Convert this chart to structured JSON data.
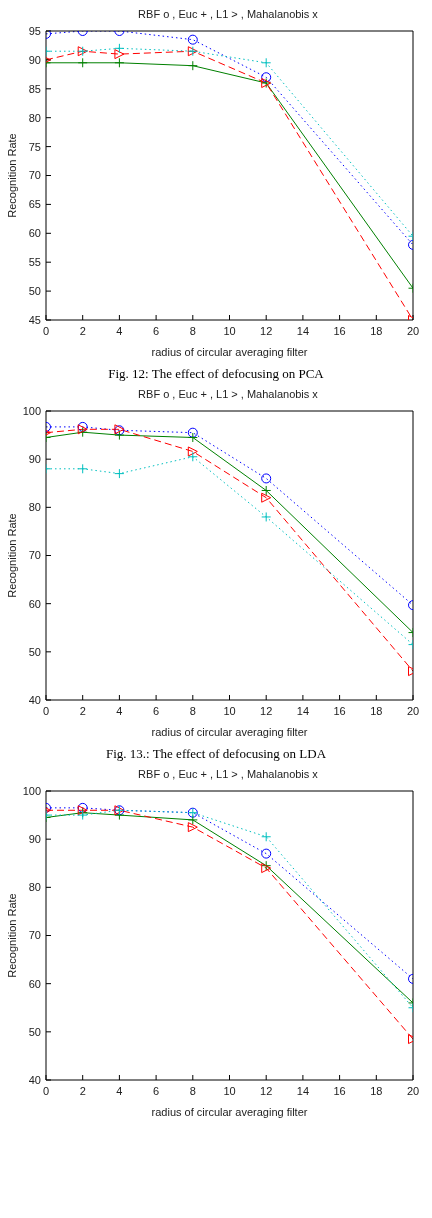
{
  "chart_data": [
    {
      "type": "line",
      "title": "RBF o , Euc + , L1 > , Mahalanobis x",
      "xlabel": "radius of circular averaging filter",
      "ylabel": "Recognition Rate",
      "annotations": [
        "Fig. 12: The effect of defocusing on PCA"
      ],
      "x": [
        0,
        2,
        4,
        8,
        12,
        20
      ],
      "xlim": [
        0,
        20
      ],
      "xticks": [
        0,
        2,
        4,
        6,
        8,
        10,
        12,
        14,
        16,
        18,
        20
      ],
      "ylim": [
        45,
        95
      ],
      "yticks": [
        45,
        50,
        55,
        60,
        65,
        70,
        75,
        80,
        85,
        90,
        95
      ],
      "series": [
        {
          "color": "#0000ff",
          "marker": "circle",
          "line_style": "dotted",
          "values": [
            94.5,
            95,
            95,
            93.5,
            87,
            58
          ]
        },
        {
          "color": "#008000",
          "marker": "cross",
          "line_style": "solid",
          "values": [
            89.5,
            89.5,
            89.5,
            89,
            86,
            50.5
          ]
        },
        {
          "color": "#ff0000",
          "marker": "triangle",
          "line_style": "dashed",
          "values": [
            90,
            91.5,
            91,
            91.5,
            86,
            45
          ]
        },
        {
          "color": "#00bfbf",
          "marker": "cross",
          "line_style": "dotted",
          "values": [
            91.5,
            91.5,
            92,
            91.5,
            89.5,
            59.5
          ]
        }
      ]
    },
    {
      "type": "line",
      "title": "RBF o , Euc + , L1 > , Mahalanobis x",
      "xlabel": "radius of circular averaging filter",
      "ylabel": "Recognition Rate",
      "annotations": [
        "Fig. 13.: The effect of defocusing on LDA"
      ],
      "x": [
        0,
        2,
        4,
        8,
        12,
        20
      ],
      "xlim": [
        0,
        20
      ],
      "xticks": [
        0,
        2,
        4,
        6,
        8,
        10,
        12,
        14,
        16,
        18,
        20
      ],
      "ylim": [
        40,
        100
      ],
      "yticks": [
        40,
        50,
        60,
        70,
        80,
        90,
        100
      ],
      "series": [
        {
          "color": "#0000ff",
          "marker": "circle",
          "line_style": "dotted",
          "values": [
            96.7,
            96.7,
            96,
            95.5,
            86,
            59.7
          ]
        },
        {
          "color": "#008000",
          "marker": "cross",
          "line_style": "solid",
          "values": [
            94.5,
            95.6,
            95,
            94.5,
            83.5,
            54
          ]
        },
        {
          "color": "#ff0000",
          "marker": "triangle",
          "line_style": "dashed",
          "values": [
            95.5,
            96.2,
            96.2,
            91.6,
            82,
            46
          ]
        },
        {
          "color": "#00bfbf",
          "marker": "cross",
          "line_style": "dotted",
          "values": [
            88,
            88,
            87,
            90.5,
            78,
            51.5
          ]
        }
      ]
    },
    {
      "type": "line",
      "title": "RBF o , Euc + , L1 > , Mahalanobis x",
      "xlabel": "radius of circular averaging filter",
      "ylabel": "Recognition Rate",
      "x": [
        0,
        2,
        4,
        8,
        12,
        20
      ],
      "xlim": [
        0,
        20
      ],
      "xticks": [
        0,
        2,
        4,
        6,
        8,
        10,
        12,
        14,
        16,
        18,
        20
      ],
      "ylim": [
        40,
        100
      ],
      "yticks": [
        40,
        50,
        60,
        70,
        80,
        90,
        100
      ],
      "series": [
        {
          "color": "#0000ff",
          "marker": "circle",
          "line_style": "dotted",
          "values": [
            96.5,
            96.5,
            96,
            95.5,
            87,
            61
          ]
        },
        {
          "color": "#008000",
          "marker": "cross",
          "line_style": "solid",
          "values": [
            94.5,
            95.5,
            95,
            94,
            84.5,
            56
          ]
        },
        {
          "color": "#ff0000",
          "marker": "triangle",
          "line_style": "dashed",
          "values": [
            96,
            96,
            96,
            92.5,
            84,
            48.5
          ]
        },
        {
          "color": "#00bfbf",
          "marker": "cross",
          "line_style": "dotted",
          "values": [
            95,
            95,
            96,
            95.5,
            90.5,
            55
          ]
        }
      ]
    }
  ]
}
